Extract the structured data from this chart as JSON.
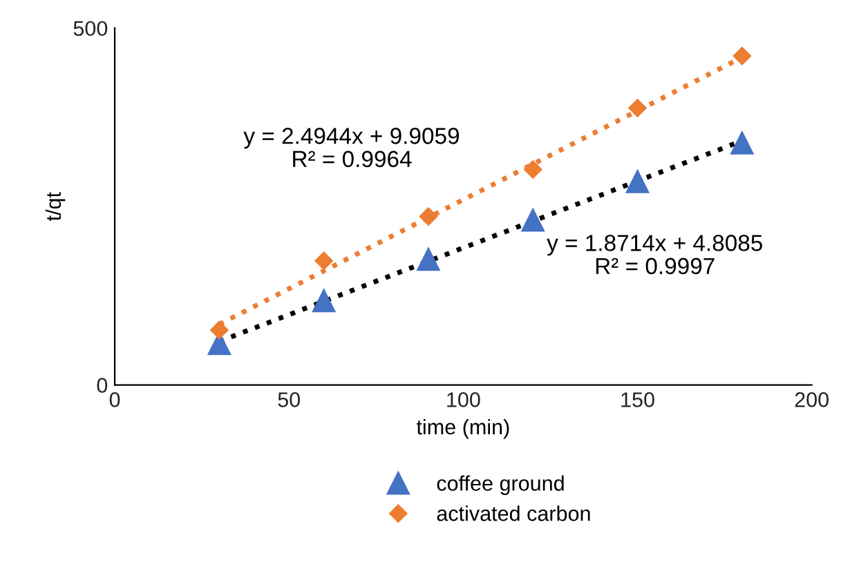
{
  "chart_data": {
    "type": "scatter",
    "xlabel": "time (min)",
    "ylabel": "t/qt",
    "xlim": [
      0,
      200
    ],
    "xticks": [
      0,
      50,
      100,
      150,
      200
    ],
    "ylim": [
      0,
      500
    ],
    "yticks": [
      0,
      500
    ],
    "grid": false,
    "legend": "bottom",
    "series": [
      {
        "name": "coffee ground",
        "marker": "triangle",
        "color": "#4472c4",
        "x": [
          30,
          60,
          90,
          120,
          150,
          180
        ],
        "values": [
          58,
          118,
          176,
          231,
          285,
          339
        ]
      },
      {
        "name": "activated carbon",
        "marker": "diamond",
        "color": "#ed7d31",
        "x": [
          30,
          60,
          90,
          120,
          150,
          180
        ],
        "values": [
          77,
          174,
          236,
          302,
          388,
          461
        ]
      },
      {
        "type": "line",
        "line_style": "dotted",
        "marker": "none",
        "color": "#000000",
        "x": [
          30,
          180
        ],
        "values": [
          61,
          342
        ]
      },
      {
        "type": "line",
        "line_style": "dotted",
        "marker": "none",
        "color": "#ed7d31",
        "x": [
          30,
          180
        ],
        "values": [
          85,
          459
        ]
      }
    ],
    "annotations": [
      "y = 2.4944x + 9.9059\nR² = 0.9964",
      "y = 1.8714x + 4.8085\nR² = 0.9997"
    ]
  }
}
